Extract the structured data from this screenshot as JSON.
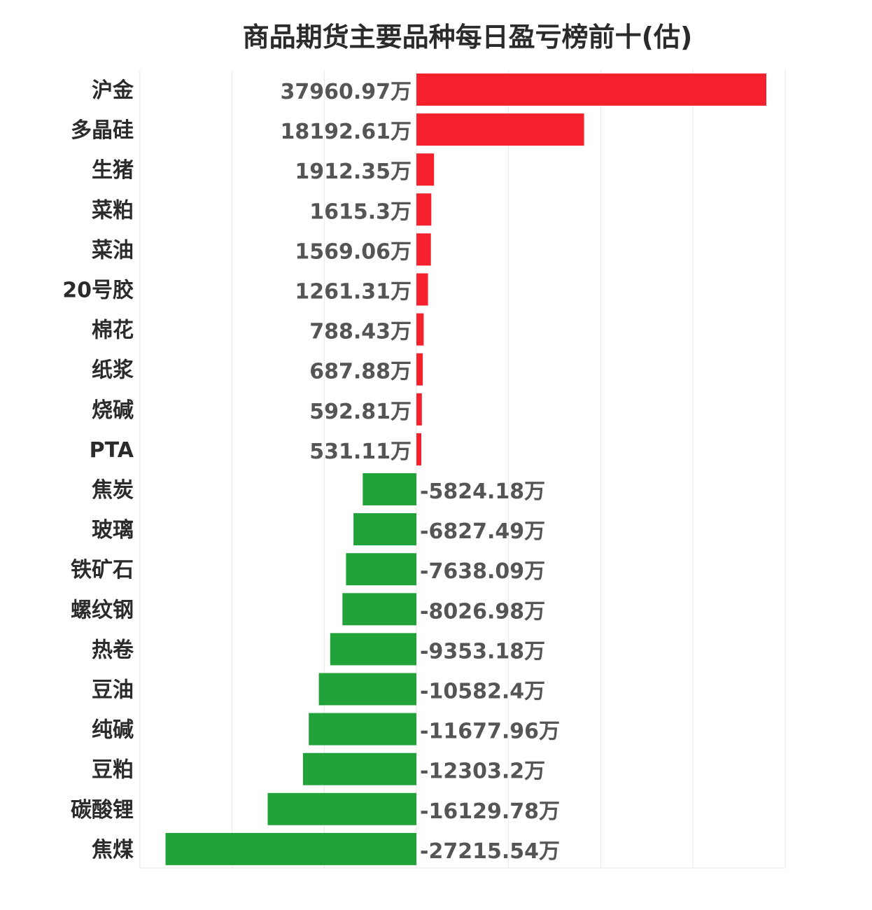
{
  "chart_data": {
    "type": "bar",
    "orientation": "horizontal",
    "title": "商品期货主要品种每日盈亏榜前十(估)",
    "unit": "万",
    "categories": [
      "沪金",
      "多晶硅",
      "生猪",
      "菜粕",
      "菜油",
      "20号胶",
      "棉花",
      "纸浆",
      "烧碱",
      "PTA",
      "焦炭",
      "玻璃",
      "铁矿石",
      "螺纹钢",
      "热卷",
      "豆油",
      "纯碱",
      "豆粕",
      "碳酸锂",
      "焦煤"
    ],
    "values": [
      37960.97,
      18192.61,
      1912.35,
      1615.3,
      1569.06,
      1261.31,
      788.43,
      687.88,
      592.81,
      531.11,
      -5824.18,
      -6827.49,
      -7638.09,
      -8026.98,
      -9353.18,
      -10582.4,
      -11677.96,
      -12303.2,
      -16129.78,
      -27215.54
    ],
    "value_labels": [
      "37960.97万",
      "18192.61万",
      "1912.35万",
      "1615.3万",
      "1569.06万",
      "1261.31万",
      "788.43万",
      "687.88万",
      "592.81万",
      "531.11万",
      "-5824.18万",
      "-6827.49万",
      "-7638.09万",
      "-8026.98万",
      "-9353.18万",
      "-10582.4万",
      "-11677.96万",
      "-12303.2万",
      "-16129.78万",
      "-27215.54万"
    ],
    "xlim": [
      -30000,
      40000
    ],
    "grid": true,
    "colors": {
      "positive": "#f5222d",
      "negative": "#22a33a",
      "grid": "#e8e8e8"
    }
  }
}
